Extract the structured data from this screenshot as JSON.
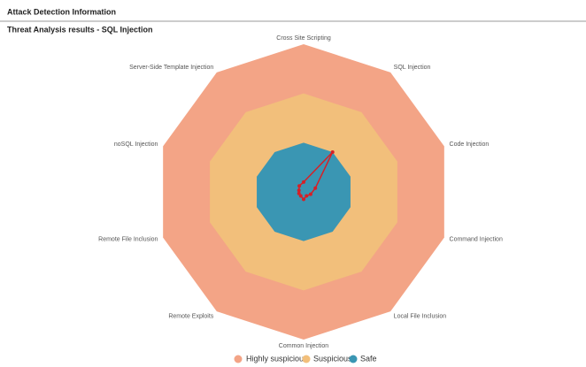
{
  "header": {
    "title": "Attack Detection Information"
  },
  "chart_data": {
    "type": "radar",
    "title": "Threat Analysis results - SQL Injection",
    "categories": [
      "Cross Site Scripting",
      "SQL Injection",
      "Code Injection",
      "Command Injection",
      "Local File Inclusion",
      "Common Injection",
      "Remote Exploits",
      "Remote File Inclusion",
      "noSQL Injection",
      "Server-Side Template Injection"
    ],
    "rlim": [
      0,
      3
    ],
    "legend": "bottom",
    "series": [
      {
        "name": "Highly suspicious",
        "color": "#f3a486",
        "fill": true,
        "values": [
          3,
          3,
          3,
          3,
          3,
          3,
          3,
          3,
          3,
          3
        ]
      },
      {
        "name": "Suspicious",
        "color": "#f2bf7b",
        "fill": true,
        "values": [
          2,
          2,
          2,
          2,
          2,
          2,
          2,
          2,
          2,
          2
        ]
      },
      {
        "name": "Safe",
        "color": "#3a96b3",
        "fill": true,
        "values": [
          1,
          1,
          1,
          1,
          1,
          1,
          1,
          1,
          1,
          1
        ]
      },
      {
        "color": "#d62027",
        "fill": false,
        "values": [
          0.2,
          1.0,
          0.25,
          0.15,
          0.1,
          0.15,
          0.1,
          0.1,
          0.1,
          0.15
        ]
      }
    ]
  }
}
